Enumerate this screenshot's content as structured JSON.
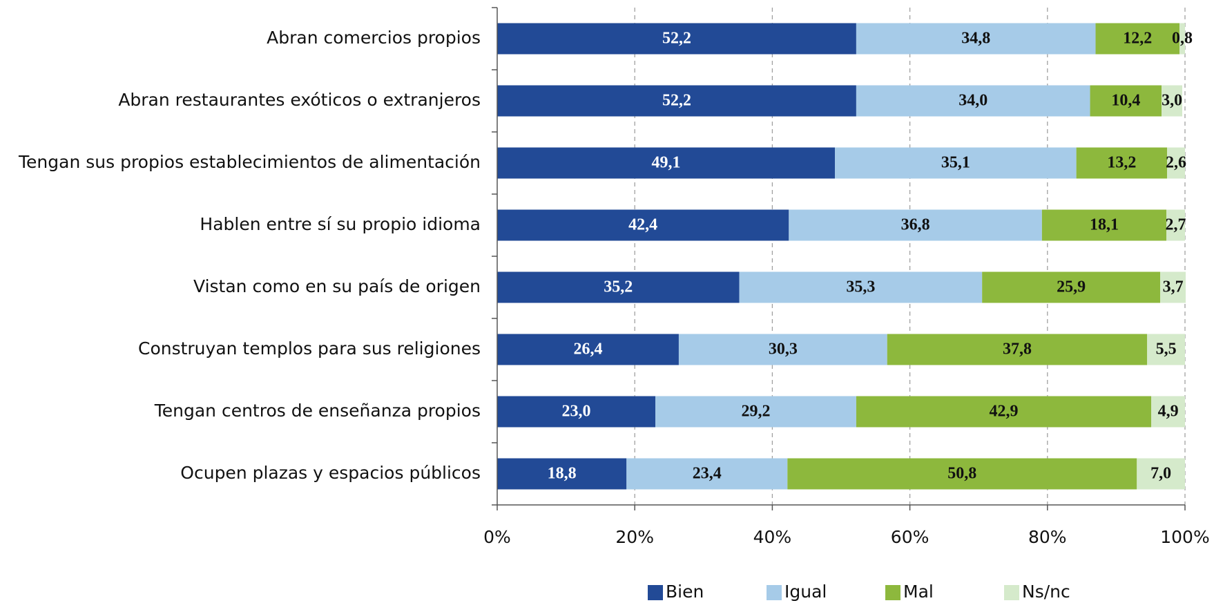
{
  "chart_data": {
    "type": "stacked_barh",
    "categories": [
      "Abran comercios propios",
      "Abran restaurantes exóticos o extranjeros",
      "Tengan sus propios establecimientos de alimentación",
      "Hablen entre sí su propio idioma",
      "Vistan como en su país de origen",
      "Construyan templos para sus religiones",
      "Tengan centros de enseñanza propios",
      "Ocupen plazas y espacios públicos"
    ],
    "series": [
      {
        "name": "Bien",
        "color": "#224a96",
        "values": [
          52.2,
          52.2,
          49.1,
          42.4,
          35.2,
          26.4,
          23.0,
          18.8
        ],
        "value_labels": [
          "52,2",
          "52,2",
          "49,1",
          "42,4",
          "35,2",
          "26,4",
          "23,0",
          "18,8"
        ]
      },
      {
        "name": "Igual",
        "color": "#a6cbe8",
        "values": [
          34.8,
          34.0,
          35.1,
          36.8,
          35.3,
          30.3,
          29.2,
          23.4
        ],
        "value_labels": [
          "34,8",
          "34,0",
          "35,1",
          "36,8",
          "35,3",
          "30,3",
          "29,2",
          "23,4"
        ]
      },
      {
        "name": "Mal",
        "color": "#8db83d",
        "values": [
          12.2,
          10.4,
          13.2,
          18.1,
          25.9,
          37.8,
          42.9,
          50.8
        ],
        "value_labels": [
          "12,2",
          "10,4",
          "13,2",
          "18,1",
          "25,9",
          "37,8",
          "42,9",
          "50,8"
        ]
      },
      {
        "name": "Ns/nc",
        "color": "#d5eacb",
        "values": [
          0.8,
          3.0,
          2.6,
          2.7,
          3.7,
          5.5,
          4.9,
          7.0
        ],
        "value_labels": [
          "0,8",
          "3,0",
          "2,6",
          "2,7",
          "3,7",
          "5,5",
          "4,9",
          "7,0"
        ]
      }
    ],
    "xlim": [
      0,
      100
    ],
    "xticks": [
      {
        "value": 0,
        "label": "0%"
      },
      {
        "value": 20,
        "label": "20%"
      },
      {
        "value": 40,
        "label": "40%"
      },
      {
        "value": 60,
        "label": "60%"
      },
      {
        "value": 80,
        "label": "80%"
      },
      {
        "value": 100,
        "label": "100%"
      }
    ],
    "grid": true,
    "legend": "bottom"
  }
}
